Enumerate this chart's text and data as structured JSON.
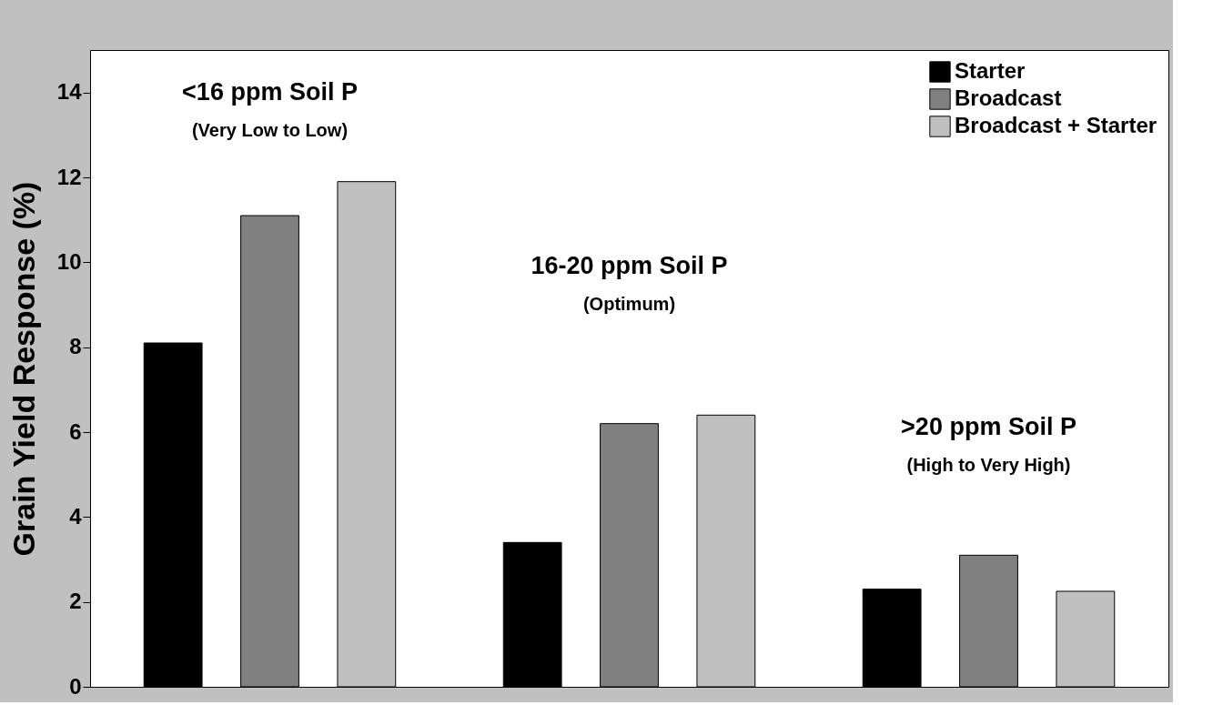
{
  "chart_data": {
    "type": "bar",
    "ylabel": "Grain Yield Response (%)",
    "categories": [
      null,
      null,
      null
    ],
    "series": [
      {
        "name": "Starter",
        "color": "#000000",
        "values": [
          8.1,
          3.4,
          2.3
        ]
      },
      {
        "name": "Broadcast",
        "color": "#808080",
        "values": [
          11.1,
          6.2,
          3.1
        ]
      },
      {
        "name": "Broadcast + Starter",
        "color": "#c0c0c0",
        "values": [
          11.9,
          6.4,
          2.25
        ]
      }
    ],
    "annotations": [
      "<16 ppm Soil P",
      "(Very Low to Low)",
      "16-20 ppm Soil P",
      "(Optimum)",
      ">20 ppm Soil P",
      "(High to Very High)"
    ],
    "ylim": [
      0,
      15
    ],
    "yticks": [
      0,
      2,
      4,
      6,
      8,
      10,
      12,
      14
    ],
    "grid": false,
    "legend": "top right",
    "tick_labels": "y"
  }
}
